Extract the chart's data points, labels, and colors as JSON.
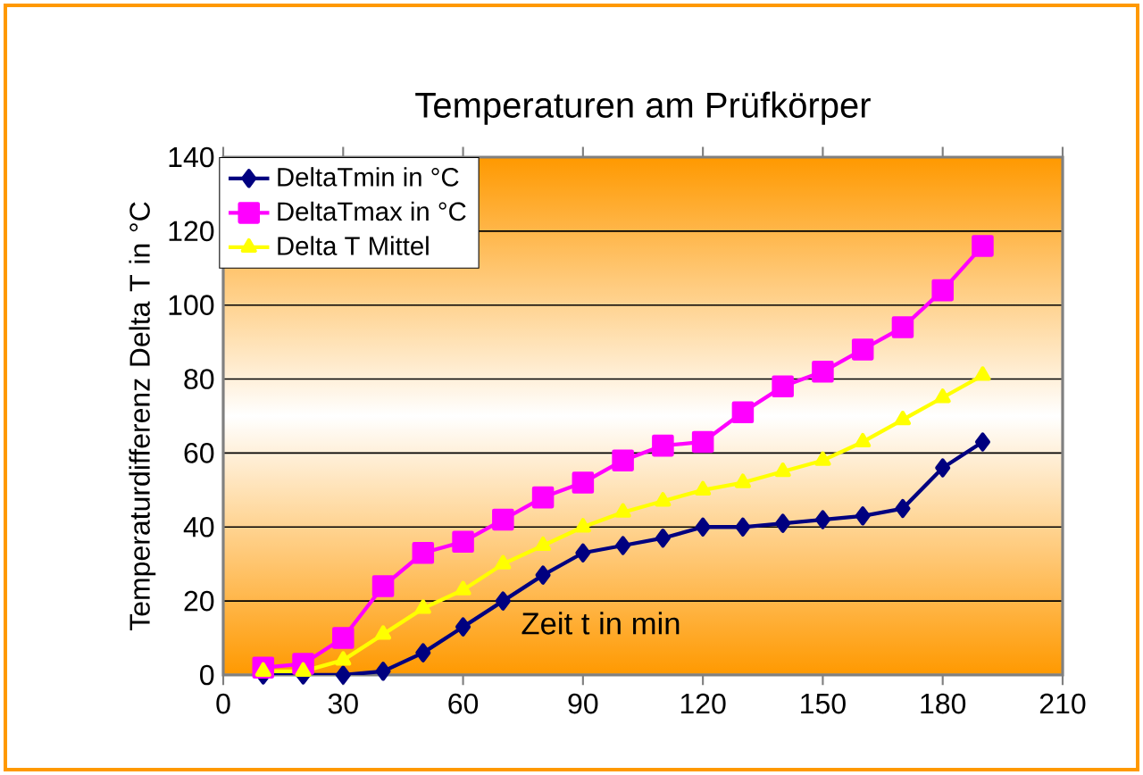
{
  "chart_data": {
    "type": "line",
    "title": "Temperaturen am Prüfkörper",
    "xlabel": "Zeit t in min",
    "ylabel": "Temperaturdifferenz Delta T in °C",
    "x": [
      10,
      20,
      30,
      40,
      50,
      60,
      70,
      80,
      90,
      100,
      110,
      120,
      130,
      140,
      150,
      160,
      170,
      180,
      190
    ],
    "series": [
      {
        "name": "DeltaTmin in °C",
        "color": "#000080",
        "marker": "diamond",
        "values": [
          0,
          0,
          0,
          1,
          6,
          13,
          20,
          27,
          33,
          35,
          37,
          40,
          40,
          41,
          42,
          43,
          45,
          56,
          63
        ]
      },
      {
        "name": "DeltaTmax in °C",
        "color": "#ff00ff",
        "marker": "square",
        "values": [
          2,
          3,
          10,
          24,
          33,
          36,
          42,
          48,
          52,
          58,
          62,
          63,
          71,
          78,
          82,
          88,
          94,
          104,
          116
        ]
      },
      {
        "name": "Delta T Mittel",
        "color": "#ffff00",
        "marker": "triangle",
        "values": [
          1,
          1,
          4,
          11,
          18,
          23,
          30,
          35,
          40,
          44,
          47,
          50,
          52,
          55,
          58,
          63,
          69,
          75,
          81
        ]
      }
    ],
    "xlim": [
      0,
      210
    ],
    "xticks": [
      0,
      30,
      60,
      90,
      120,
      150,
      180,
      210
    ],
    "ylim": [
      0,
      140
    ],
    "yticks": [
      0,
      20,
      40,
      60,
      80,
      100,
      120,
      140
    ],
    "grid": "y",
    "legend": "top left",
    "line_style": "solid"
  }
}
